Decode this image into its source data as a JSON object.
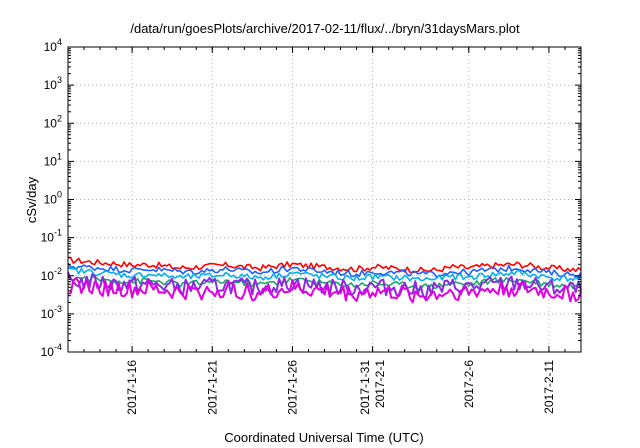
{
  "chart_data": {
    "type": "line",
    "title": "/data/run/goesPlots/archive/2017-02-11/flux/../bryn/31daysMars.plot",
    "xlabel": "Coordinated Universal Time (UTC)",
    "ylabel": "cSv/day",
    "yscale": "log",
    "ylim": [
      0.0001,
      10000
    ],
    "xlim": [
      "2017-01-12",
      "2017-02-13"
    ],
    "grid": true,
    "y_ticks": [
      {
        "base": "10",
        "exp": "4",
        "value": 10000
      },
      {
        "base": "10",
        "exp": "3",
        "value": 1000
      },
      {
        "base": "10",
        "exp": "2",
        "value": 100
      },
      {
        "base": "10",
        "exp": "1",
        "value": 10
      },
      {
        "base": "10",
        "exp": "0",
        "value": 1
      },
      {
        "base": "10",
        "exp": "-1",
        "value": 0.1
      },
      {
        "base": "10",
        "exp": "-2",
        "value": 0.01
      },
      {
        "base": "10",
        "exp": "-3",
        "value": 0.001
      },
      {
        "base": "10",
        "exp": "-4",
        "value": 0.0001
      }
    ],
    "x_ticks": [
      {
        "date": "2017-01-16",
        "lines": [
          "2017-1-16"
        ]
      },
      {
        "date": "2017-01-21",
        "lines": [
          "2017-1-21"
        ]
      },
      {
        "date": "2017-01-26",
        "lines": [
          "2017-1-26"
        ]
      },
      {
        "date": "2017-01-31",
        "lines": [
          "2017-1-31",
          "2017-2-1"
        ]
      },
      {
        "date": "2017-02-06",
        "lines": [
          "2017-2-6"
        ]
      },
      {
        "date": "2017-02-11",
        "lines": [
          "2017-2-11"
        ]
      }
    ],
    "x": [
      "2017-01-12",
      "2017-01-13",
      "2017-01-14",
      "2017-01-15",
      "2017-01-16",
      "2017-01-17",
      "2017-01-18",
      "2017-01-19",
      "2017-01-20",
      "2017-01-21",
      "2017-01-22",
      "2017-01-23",
      "2017-01-24",
      "2017-01-25",
      "2017-01-26",
      "2017-01-27",
      "2017-01-28",
      "2017-01-29",
      "2017-01-30",
      "2017-01-31",
      "2017-02-01",
      "2017-02-02",
      "2017-02-03",
      "2017-02-04",
      "2017-02-05",
      "2017-02-06",
      "2017-02-07",
      "2017-02-08",
      "2017-02-09",
      "2017-02-10",
      "2017-02-11",
      "2017-02-12",
      "2017-02-13"
    ],
    "series": [
      {
        "color": "#ff0000",
        "values": [
          0.026,
          0.024,
          0.022,
          0.021,
          0.019,
          0.02,
          0.018,
          0.016,
          0.017,
          0.018,
          0.019,
          0.017,
          0.016,
          0.018,
          0.02,
          0.018,
          0.017,
          0.016,
          0.015,
          0.017,
          0.016,
          0.015,
          0.014,
          0.014,
          0.017,
          0.016,
          0.018,
          0.019,
          0.02,
          0.018,
          0.016,
          0.015,
          0.014
        ]
      },
      {
        "color": "#1f5fff",
        "values": [
          0.018,
          0.017,
          0.016,
          0.015,
          0.014,
          0.015,
          0.014,
          0.013,
          0.013,
          0.014,
          0.015,
          0.013,
          0.012,
          0.014,
          0.016,
          0.014,
          0.013,
          0.012,
          0.011,
          0.013,
          0.012,
          0.012,
          0.011,
          0.011,
          0.013,
          0.012,
          0.014,
          0.015,
          0.016,
          0.014,
          0.012,
          0.011,
          0.011
        ]
      },
      {
        "color": "#00b0f0",
        "values": [
          0.014,
          0.013,
          0.012,
          0.011,
          0.01,
          0.011,
          0.01,
          0.009,
          0.0095,
          0.01,
          0.011,
          0.0095,
          0.009,
          0.01,
          0.012,
          0.0105,
          0.0095,
          0.009,
          0.0085,
          0.0095,
          0.009,
          0.0088,
          0.008,
          0.0085,
          0.0095,
          0.009,
          0.0105,
          0.011,
          0.012,
          0.0105,
          0.009,
          0.0085,
          0.0082
        ]
      },
      {
        "color": "#18a868",
        "values": [
          0.009,
          0.0085,
          0.008,
          0.0075,
          0.007,
          0.0075,
          0.0068,
          0.006,
          0.0064,
          0.0068,
          0.0072,
          0.0064,
          0.006,
          0.0068,
          0.008,
          0.0072,
          0.0065,
          0.006,
          0.0058,
          0.0065,
          0.006,
          0.0058,
          0.0052,
          0.0055,
          0.0065,
          0.006,
          0.007,
          0.0075,
          0.008,
          0.007,
          0.006,
          0.0056,
          0.0054
        ]
      },
      {
        "color": "#8a2be2",
        "values": [
          0.0075,
          0.007,
          0.0066,
          0.0062,
          0.0058,
          0.006,
          0.0055,
          0.005,
          0.0052,
          0.0055,
          0.0058,
          0.0052,
          0.0049,
          0.0055,
          0.0064,
          0.0058,
          0.0053,
          0.0049,
          0.0047,
          0.0053,
          0.0049,
          0.0047,
          0.0042,
          0.0045,
          0.0053,
          0.0049,
          0.0057,
          0.006,
          0.0064,
          0.0057,
          0.0049,
          0.0046,
          0.0044
        ]
      },
      {
        "color": "#e000e0",
        "values": [
          0.0055,
          0.0052,
          0.0048,
          0.0045,
          0.0042,
          0.0044,
          0.004,
          0.0036,
          0.0038,
          0.004,
          0.0043,
          0.0038,
          0.0036,
          0.004,
          0.0047,
          0.0042,
          0.0039,
          0.0036,
          0.0034,
          0.0039,
          0.0036,
          0.0034,
          0.003,
          0.0033,
          0.0039,
          0.0036,
          0.0042,
          0.0044,
          0.0047,
          0.0042,
          0.0036,
          0.0034,
          0.0032
        ]
      }
    ]
  }
}
